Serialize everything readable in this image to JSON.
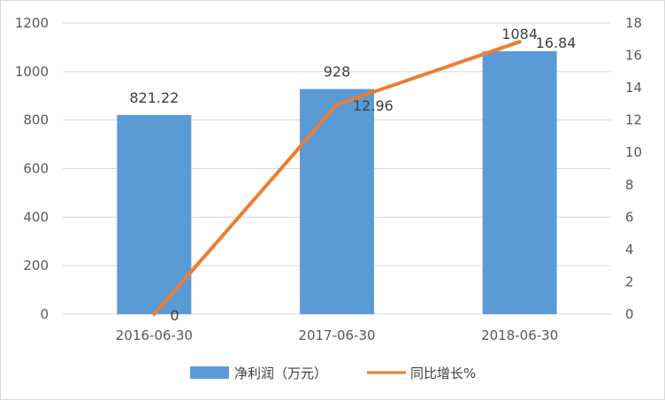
{
  "chart_data": {
    "type": "bar",
    "categories": [
      "2016-06-30",
      "2017-06-30",
      "2018-06-30"
    ],
    "series": [
      {
        "name": "净利润（万元）",
        "type": "bar",
        "axis": "left",
        "values": [
          821.22,
          928,
          1084
        ],
        "color": "#5b9bd5",
        "labels": [
          "821.22",
          "928",
          "1084"
        ]
      },
      {
        "name": "同比增长%",
        "type": "line",
        "axis": "right",
        "values": [
          0,
          12.96,
          16.84
        ],
        "color": "#ed7d31",
        "labels": [
          "0",
          "12.96",
          "16.84"
        ]
      }
    ],
    "left_axis": {
      "min": 0,
      "max": 1200,
      "step": 200,
      "ticks": [
        "0",
        "200",
        "400",
        "600",
        "800",
        "1000",
        "1200"
      ]
    },
    "right_axis": {
      "min": 0,
      "max": 18,
      "step": 2,
      "ticks": [
        "0",
        "2",
        "4",
        "6",
        "8",
        "10",
        "12",
        "14",
        "16",
        "18"
      ]
    },
    "legend_placement": "bottom",
    "grid": true,
    "gridline_color": "#d9d9d9"
  }
}
